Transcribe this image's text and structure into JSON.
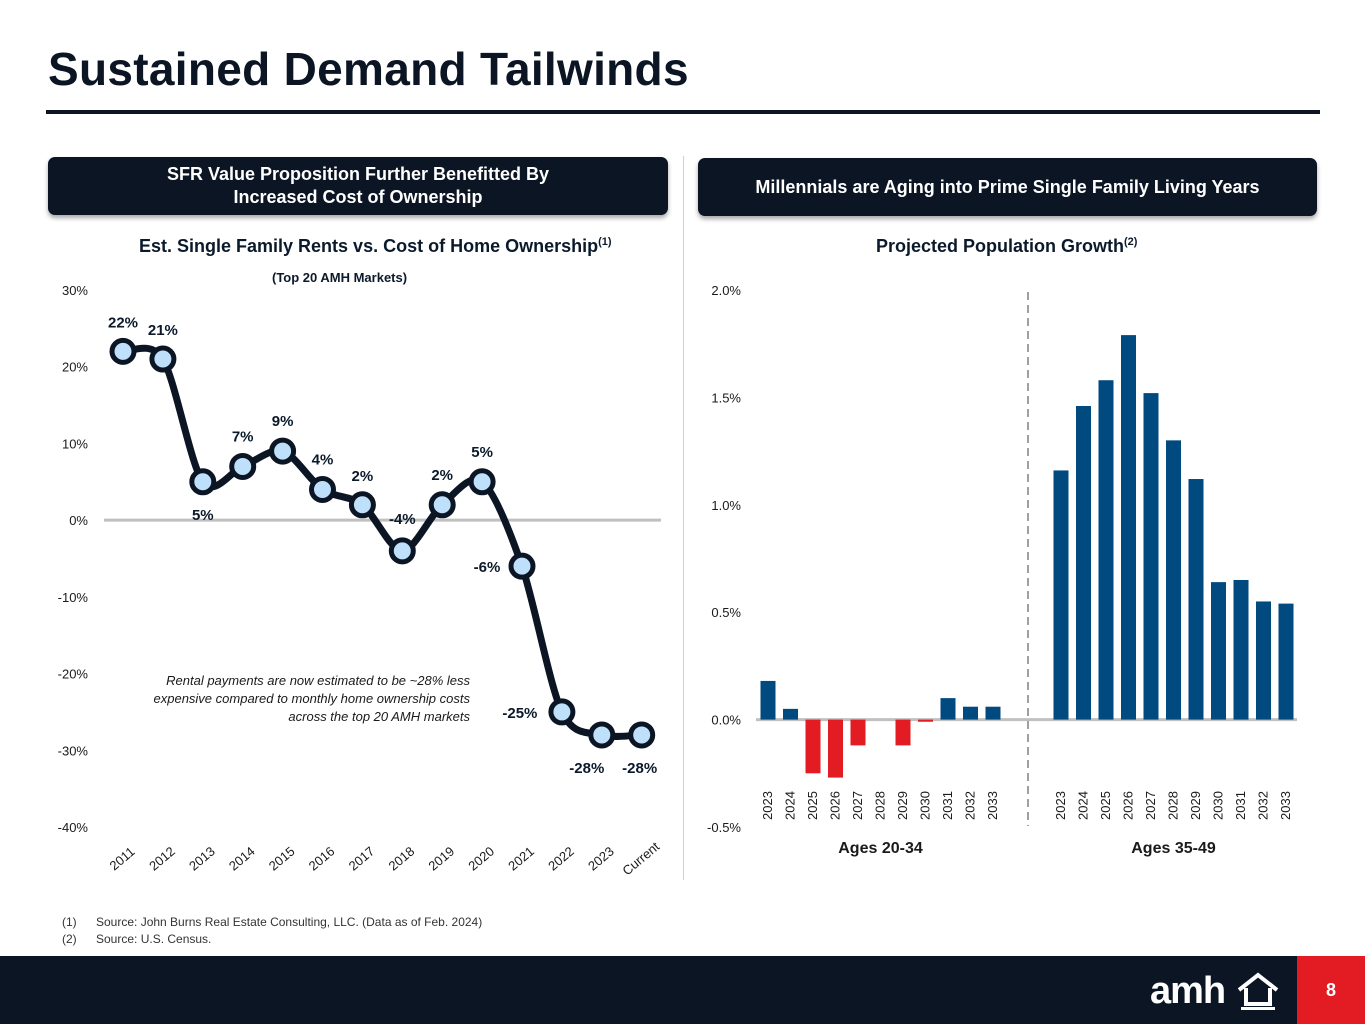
{
  "page_title": "Sustained Demand Tailwinds",
  "left_banner": {
    "line1": "SFR Value Proposition Further Benefitted By",
    "line2": "Increased Cost of Ownership"
  },
  "right_banner": "Millennials are Aging into Prime Single Family Living Years",
  "colors": {
    "navy": "#0b1523",
    "bar_blue": "#004a80",
    "bar_red": "#e31b23",
    "point_fill": "#bfe0fa",
    "accent_red": "#e31b23"
  },
  "chart_data": [
    {
      "type": "line",
      "title": "Est. Single Family Rents vs. Cost of Home Ownership",
      "title_sup": "(1)",
      "subtitle": "(Top 20 AMH Markets)",
      "categories": [
        "2011",
        "2012",
        "2013",
        "2014",
        "2015",
        "2016",
        "2017",
        "2018",
        "2019",
        "2020",
        "2021",
        "2022",
        "2023",
        "Current"
      ],
      "values": [
        22,
        21,
        5,
        7,
        9,
        4,
        2,
        -4,
        2,
        5,
        -6,
        -25,
        -28,
        -28
      ],
      "labels": [
        "22%",
        "21%",
        "5%",
        "7%",
        "9%",
        "4%",
        "2%",
        "-4%",
        "2%",
        "5%",
        "-6%",
        "-25%",
        "-28%",
        "-28%"
      ],
      "y_ticks": [
        "30%",
        "20%",
        "10%",
        "0%",
        "-10%",
        "-20%",
        "-30%",
        "-40%"
      ],
      "ylim": [
        -40,
        30
      ],
      "annotation": "Rental payments are now estimated to be ~28% less expensive compared to monthly home ownership costs across the top 20 AMH markets"
    },
    {
      "type": "bar",
      "title": "Projected Population Growth",
      "title_sup": "(2)",
      "ylim": [
        -0.5,
        2.0
      ],
      "y_ticks": [
        "2.0%",
        "1.5%",
        "1.0%",
        "0.5%",
        "0.0%",
        "-0.5%"
      ],
      "groups": [
        {
          "name": "Ages 20-34",
          "categories": [
            "2023",
            "2024",
            "2025",
            "2026",
            "2027",
            "2028",
            "2029",
            "2030",
            "2031",
            "2032",
            "2033"
          ],
          "values": [
            0.18,
            0.05,
            -0.25,
            -0.27,
            -0.12,
            0.0,
            -0.12,
            -0.01,
            0.1,
            0.06,
            0.06
          ]
        },
        {
          "name": "Ages 35-49",
          "categories": [
            "2023",
            "2024",
            "2025",
            "2026",
            "2027",
            "2028",
            "2029",
            "2030",
            "2031",
            "2032",
            "2033"
          ],
          "values": [
            1.16,
            1.46,
            1.58,
            1.79,
            1.52,
            1.3,
            1.12,
            0.64,
            0.65,
            0.55,
            0.54
          ]
        }
      ]
    }
  ],
  "footnotes": [
    {
      "num": "(1)",
      "text": "Source: John Burns Real Estate Consulting, LLC. (Data as of Feb. 2024)"
    },
    {
      "num": "(2)",
      "text": "Source: U.S. Census."
    }
  ],
  "logo_text": "amh",
  "page_number": "8"
}
